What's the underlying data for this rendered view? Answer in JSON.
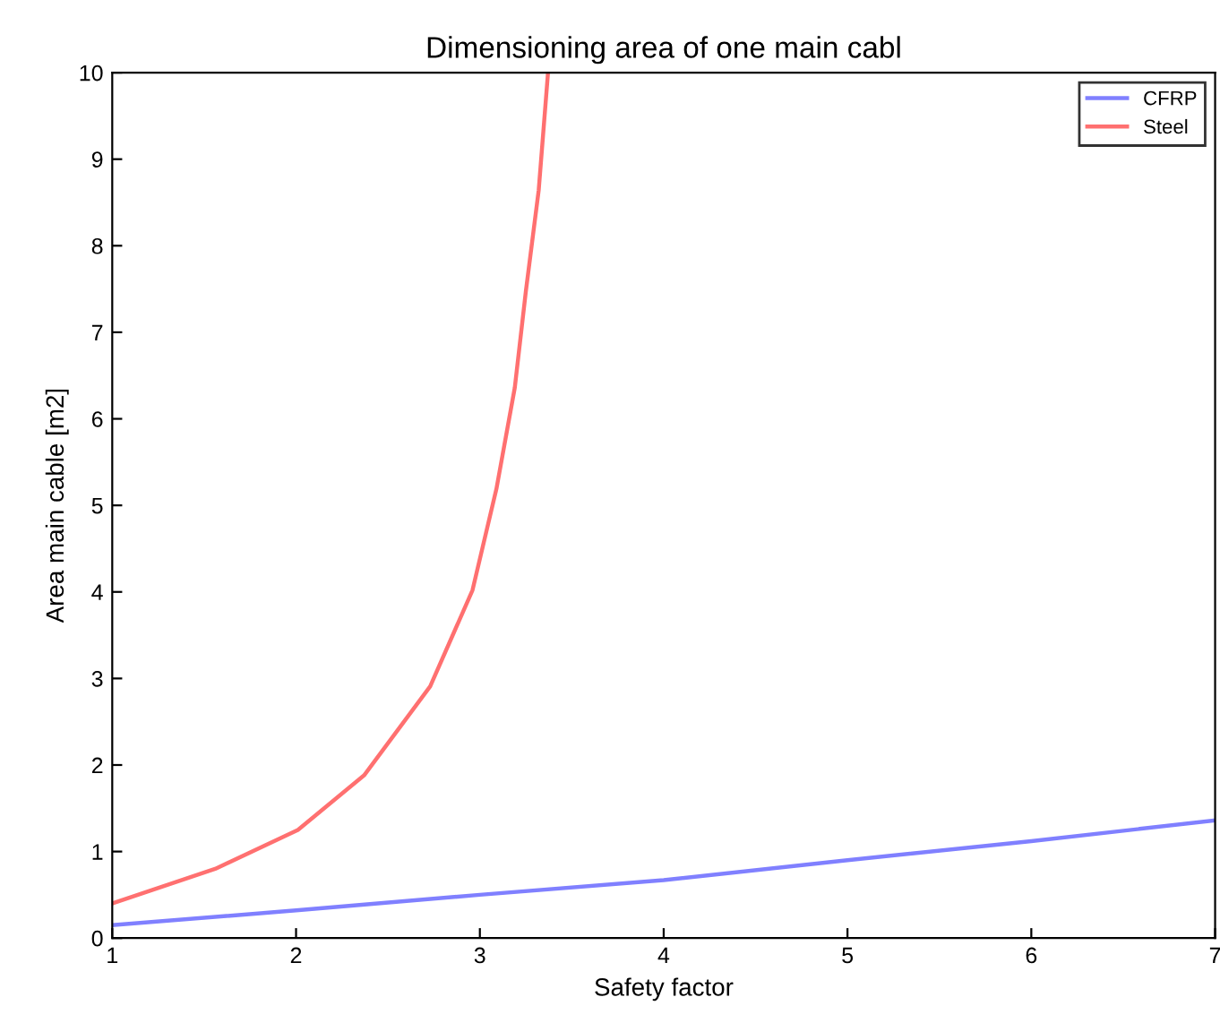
{
  "chart_data": {
    "type": "line",
    "title": "Dimensioning area of one main cabl",
    "xlabel": "Safety factor",
    "ylabel": "Area main cable [m2]",
    "xlim": [
      1,
      7
    ],
    "ylim": [
      0,
      10
    ],
    "xticks": [
      1,
      2,
      3,
      4,
      5,
      6,
      7
    ],
    "yticks": [
      0,
      1,
      2,
      3,
      4,
      5,
      6,
      7,
      8,
      9,
      10
    ],
    "grid": false,
    "legend": "top right",
    "line_style": "solid",
    "series": [
      {
        "name": "CFRP",
        "color": "#8080ff",
        "x": [
          1,
          2,
          3,
          4,
          5,
          6,
          7
        ],
        "values": [
          0.15,
          0.32,
          0.5,
          0.67,
          0.9,
          1.12,
          1.36
        ]
      },
      {
        "name": "Steel",
        "color": "#ff7070",
        "x": [
          1,
          1.56,
          2.01,
          2.37,
          2.73,
          2.96,
          3.09,
          3.19,
          3.25,
          3.32,
          3.37
        ],
        "values": [
          0.4,
          0.8,
          1.25,
          1.88,
          2.91,
          4.02,
          5.19,
          6.36,
          7.47,
          8.64,
          9.98
        ]
      }
    ]
  }
}
